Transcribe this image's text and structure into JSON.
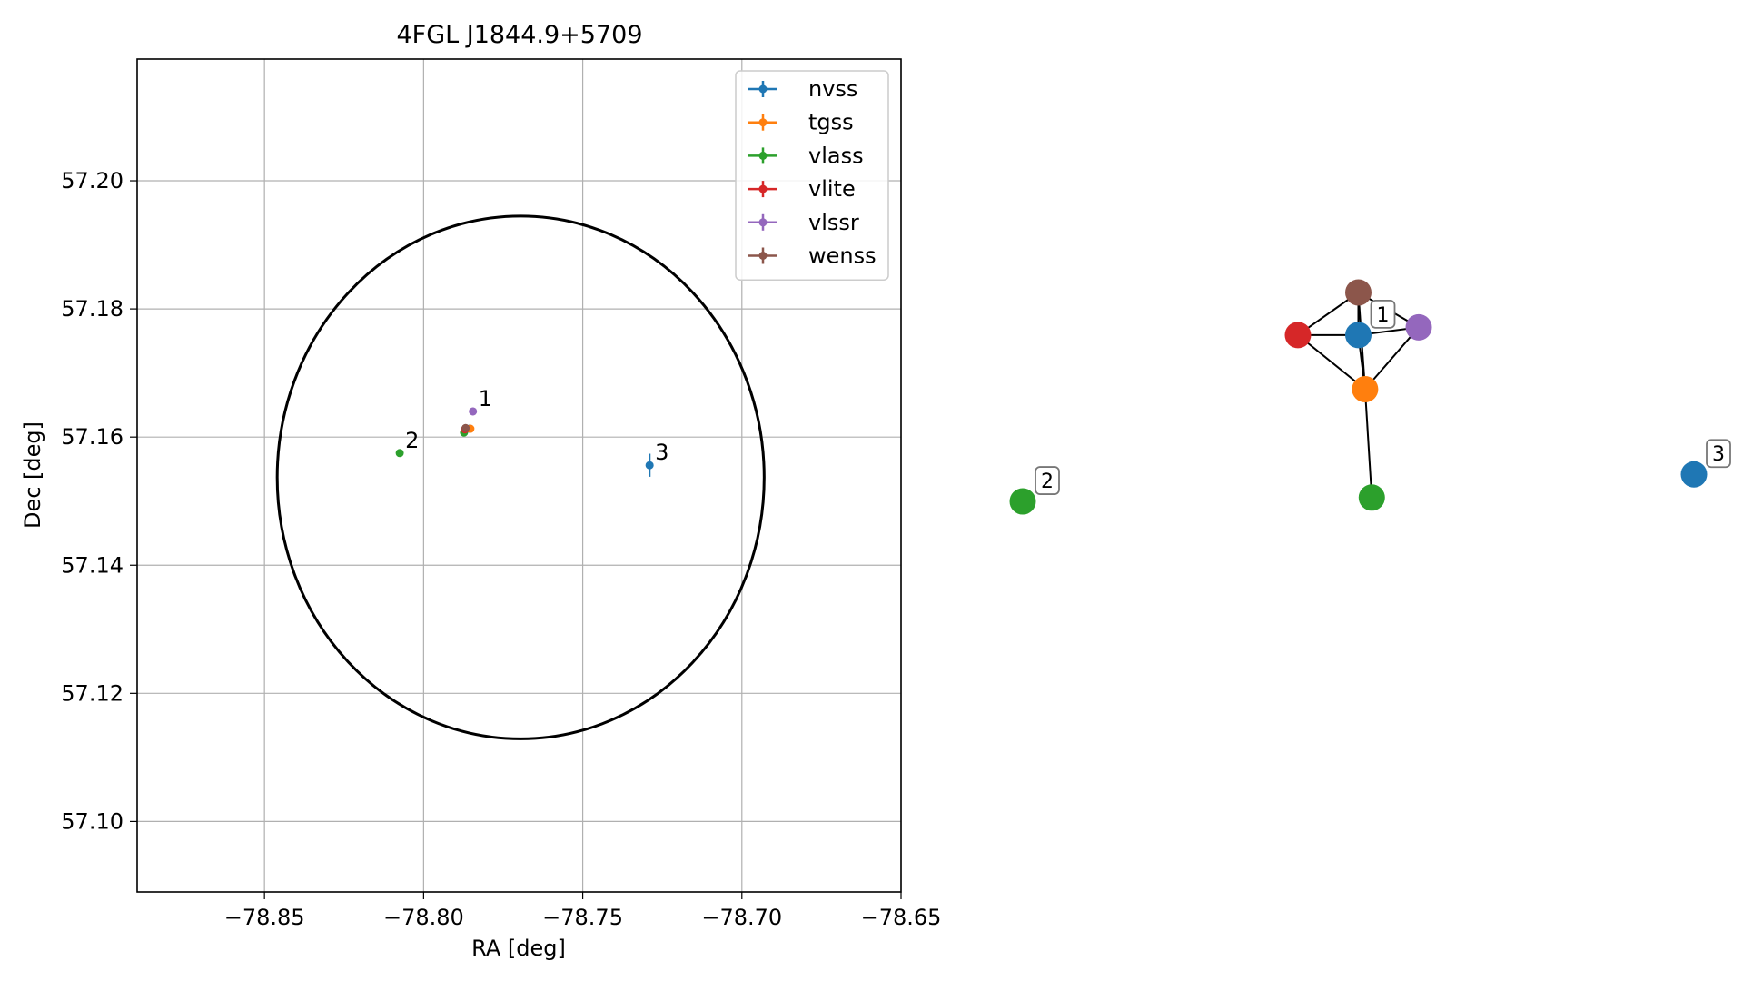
{
  "chart_data": [
    {
      "type": "scatter",
      "title": "4FGL J1844.9+5709",
      "xlabel": "RA [deg]",
      "ylabel": "Dec [deg]",
      "xlim": [
        -78.89,
        -78.65
      ],
      "ylim": [
        57.089,
        57.219
      ],
      "x_ticks": [
        -78.85,
        -78.8,
        -78.75,
        -78.7,
        -78.65
      ],
      "x_tick_labels": [
        "−78.85",
        "−78.80",
        "−78.75",
        "−78.70",
        "−78.65"
      ],
      "y_ticks": [
        57.1,
        57.12,
        57.14,
        57.16,
        57.18,
        57.2
      ],
      "y_tick_labels": [
        "57.10",
        "57.12",
        "57.14",
        "57.16",
        "57.18",
        "57.20"
      ],
      "grid": true,
      "legend_position": "top-right",
      "error_ellipse": {
        "center": [
          -78.7695,
          57.1537
        ],
        "ra_radius": 0.0765,
        "dec_radius": 0.0408,
        "color": "#000000"
      },
      "series": [
        {
          "name": "nvss",
          "color": "#1f77b4",
          "points": [
            {
              "x": -78.7855,
              "y": 57.1613,
              "xerr": 0.0003,
              "yerr": 0.0006
            },
            {
              "x": -78.729,
              "y": 57.1556,
              "xerr": 0.0004,
              "yerr": 0.0018
            }
          ]
        },
        {
          "name": "tgss",
          "color": "#ff7f0e",
          "points": [
            {
              "x": -78.7853,
              "y": 57.1613,
              "xerr": 0.0002,
              "yerr": 0.0003
            }
          ]
        },
        {
          "name": "vlass",
          "color": "#2ca02c",
          "points": [
            {
              "x": -78.7873,
              "y": 57.1607,
              "xerr": 0.0001,
              "yerr": 0.0001
            },
            {
              "x": -78.8075,
              "y": 57.1575,
              "xerr": 0.0001,
              "yerr": 0.0001
            }
          ]
        },
        {
          "name": "vlite",
          "color": "#d62728",
          "points": [
            {
              "x": -78.787,
              "y": 57.1612,
              "xerr": 0.0003,
              "yerr": 0.0003
            }
          ]
        },
        {
          "name": "vlssr",
          "color": "#9467bd",
          "points": [
            {
              "x": -78.7845,
              "y": 57.164,
              "xerr": 0.0004,
              "yerr": 0.0006
            }
          ]
        },
        {
          "name": "wenss",
          "color": "#8c564b",
          "points": [
            {
              "x": -78.7868,
              "y": 57.1614,
              "xerr": 0.0003,
              "yerr": 0.0003
            }
          ]
        }
      ],
      "annotations": [
        {
          "text": "1",
          "x": -78.7845,
          "y": 57.164
        },
        {
          "text": "2",
          "x": -78.8075,
          "y": 57.1575
        },
        {
          "text": "3",
          "x": -78.729,
          "y": 57.1556
        }
      ]
    },
    {
      "type": "network",
      "nodes": [
        {
          "id": "n1",
          "color": "#1f77b4",
          "pos": [
            0.5,
            0.62
          ]
        },
        {
          "id": "n2",
          "color": "#ff7f0e",
          "pos": [
            0.51,
            0.48
          ]
        },
        {
          "id": "n3",
          "color": "#2ca02c",
          "pos": [
            0.52,
            0.2
          ]
        },
        {
          "id": "n4",
          "color": "#d62728",
          "pos": [
            0.41,
            0.62
          ]
        },
        {
          "id": "n5",
          "color": "#9467bd",
          "pos": [
            0.59,
            0.64
          ]
        },
        {
          "id": "n6",
          "color": "#8c564b",
          "pos": [
            0.5,
            0.73
          ]
        },
        {
          "id": "n7",
          "color": "#2ca02c",
          "pos": [
            0.0,
            0.19
          ]
        },
        {
          "id": "n8",
          "color": "#1f77b4",
          "pos": [
            1.0,
            0.26
          ]
        }
      ],
      "edges": [
        [
          "n1",
          "n2"
        ],
        [
          "n1",
          "n4"
        ],
        [
          "n1",
          "n5"
        ],
        [
          "n1",
          "n6"
        ],
        [
          "n2",
          "n3"
        ],
        [
          "n2",
          "n4"
        ],
        [
          "n2",
          "n5"
        ],
        [
          "n2",
          "n6"
        ],
        [
          "n4",
          "n6"
        ],
        [
          "n5",
          "n6"
        ]
      ],
      "labels": [
        {
          "text": "1",
          "node": "n1"
        },
        {
          "text": "2",
          "node": "n7"
        },
        {
          "text": "3",
          "node": "n8"
        }
      ]
    }
  ]
}
